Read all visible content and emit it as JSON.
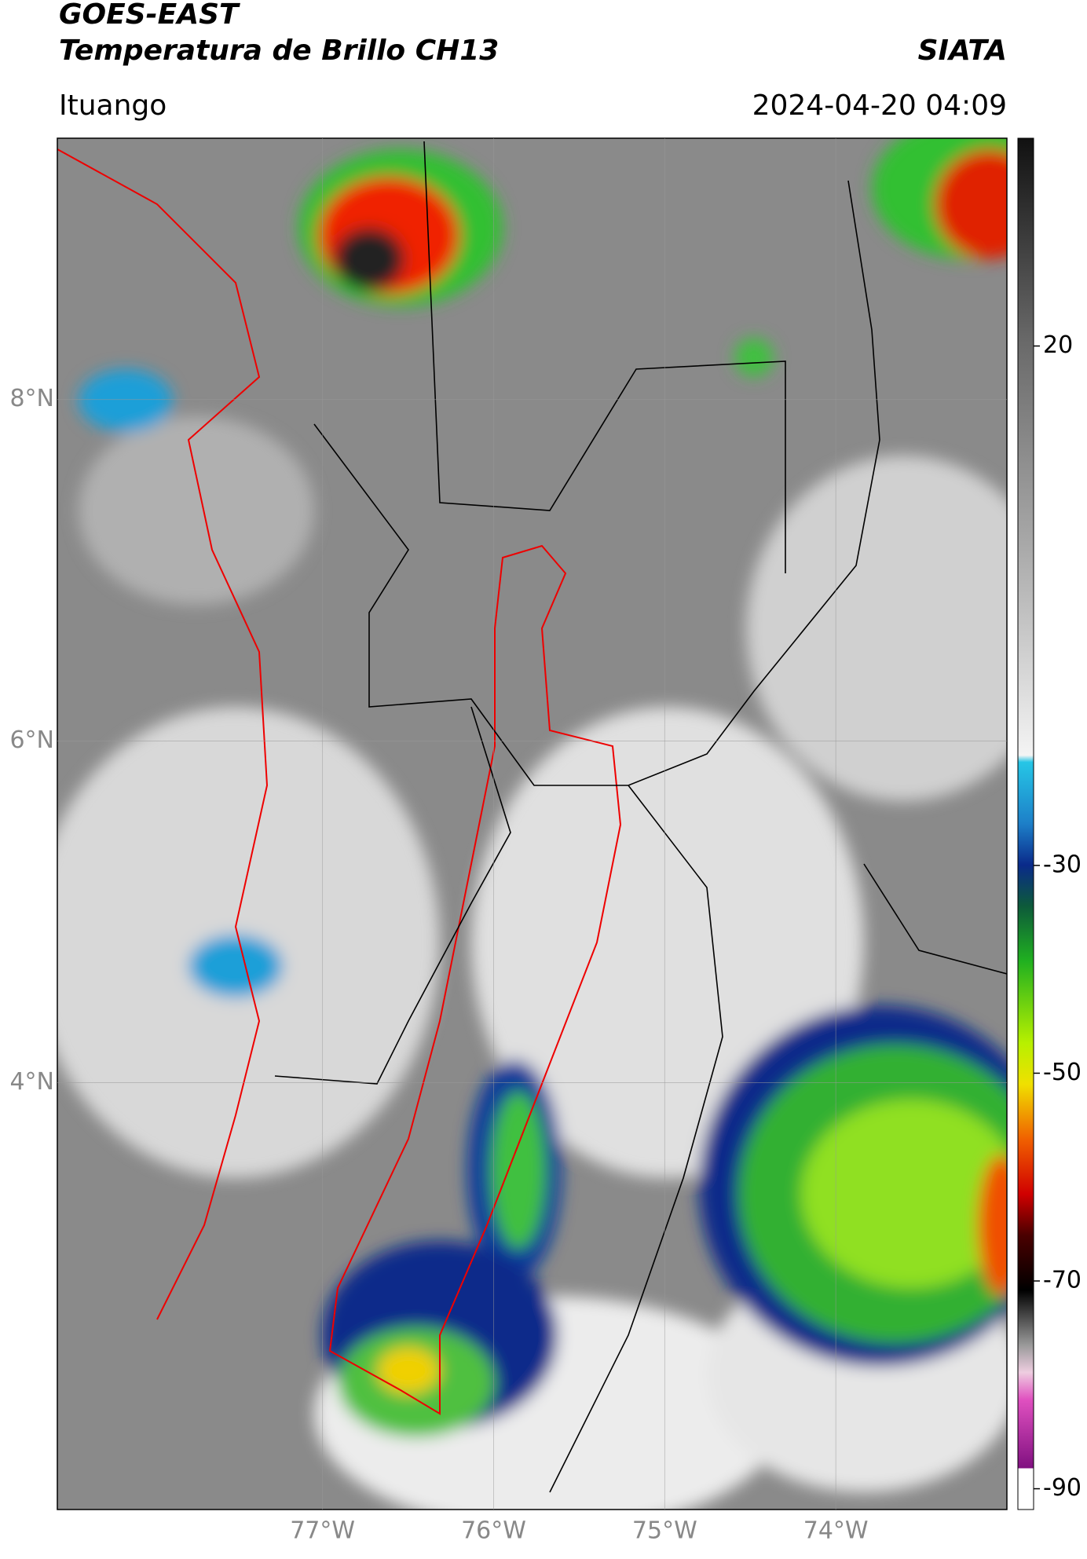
{
  "header": {
    "title": "GOES-EAST",
    "subtitle": "Temperatura de Brillo CH13",
    "region": "Ituango",
    "source": "SIATA",
    "datetime": "2024-04-20 04:09"
  },
  "chart_data": {
    "type": "map",
    "xlim": [
      -78.55,
      -73.0
    ],
    "ylim": [
      1.5,
      9.53
    ],
    "xticks": [
      {
        "value": -77,
        "label": "77°W"
      },
      {
        "value": -76,
        "label": "76°W"
      },
      {
        "value": -75,
        "label": "75°W"
      },
      {
        "value": -74,
        "label": "74°W"
      }
    ],
    "yticks": [
      {
        "value": 8,
        "label": "8°N"
      },
      {
        "value": 6,
        "label": "6°N"
      },
      {
        "value": 4,
        "label": "4°N"
      }
    ],
    "grid": true,
    "colorbar": {
      "lim": [
        -92,
        40
      ],
      "ticks": [
        20,
        -30,
        -50,
        -70,
        -90
      ]
    }
  }
}
